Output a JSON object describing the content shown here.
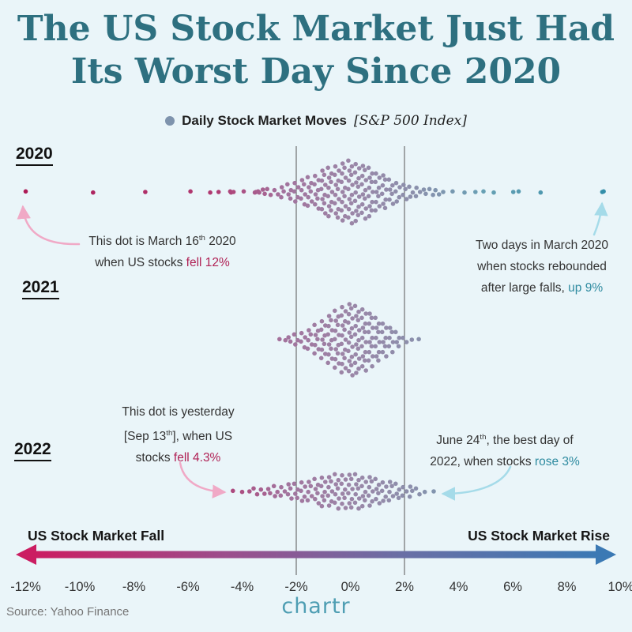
{
  "title": {
    "line1": "The US Stock Market Just Had",
    "line2": "Its Worst Day Since 2020"
  },
  "legend": {
    "label": "Daily Stock Market Moves",
    "bracket": "[S&P 500 Index]"
  },
  "colors": {
    "background": "#eaf5f9",
    "title": "#2e7080",
    "fall": "#b02155",
    "rise": "#2e8ba0",
    "dot_center": "#9b86a7",
    "legend_dot": "#7e93ad",
    "arrow_pink": "#f0a9c6",
    "arrow_blue": "#a5dbe9",
    "gradient_left": "#cb1d62",
    "gradient_right": "#3b79b4"
  },
  "axis": {
    "min": -12,
    "max": 10,
    "ticks": [
      "-12%",
      "-10%",
      "-8%",
      "-6%",
      "-4%",
      "-2%",
      "0%",
      "2%",
      "4%",
      "6%",
      "8%",
      "10%"
    ],
    "gridlines": [
      -2,
      2
    ]
  },
  "annotations": {
    "fall2020": {
      "line1_a": "This dot is March 16",
      "line1_sup": "th",
      "line1_b": " 2020",
      "line2_a": "when US stocks ",
      "line2_hl": "fell 12%"
    },
    "rise2020": {
      "line1": "Two days in March 2020",
      "line2": "when stocks rebounded",
      "line3_a": "after large falls, ",
      "line3_hl": "up 9%"
    },
    "fall2022": {
      "line1": "This dot is yesterday",
      "line2_a": "[Sep 13",
      "line2_sup": "th",
      "line2_b": "], when US",
      "line3_a": "stocks ",
      "line3_hl": "fell 4.3%"
    },
    "rise2022": {
      "line1_a": "June 24",
      "line1_sup": "th",
      "line1_b": ", the best day of",
      "line2_a": "2022, when stocks ",
      "line2_hl": "rose 3%"
    }
  },
  "direction": {
    "fall": "US Stock Market Fall",
    "rise": "US Stock Market Rise"
  },
  "footer": {
    "source": "Source: Yahoo Finance",
    "logo": "chartr"
  },
  "chart_data": {
    "type": "beeswarm_histogram",
    "title": "Daily Stock Market Moves [S&P 500 Index]",
    "unit": "% daily change",
    "x_domain": [
      -12,
      10
    ],
    "gridlines_pct": [
      -2,
      2
    ],
    "years": [
      {
        "label": "2020",
        "bins": [
          [
            -11.98,
            1
          ],
          [
            -9.51,
            1
          ],
          [
            -7.6,
            1
          ],
          [
            -5.89,
            1
          ],
          [
            -5.18,
            1
          ],
          [
            -4.89,
            1
          ],
          [
            -4.42,
            1
          ],
          [
            -4.41,
            1
          ],
          [
            -4.34,
            1
          ],
          [
            -3.92,
            1
          ],
          [
            -3.53,
            1
          ],
          [
            -3.51,
            1
          ],
          [
            -3.39,
            1
          ],
          [
            -3.37,
            1
          ],
          [
            -3.2,
            2
          ],
          [
            -3.0,
            2
          ],
          [
            -2.75,
            2
          ],
          [
            -2.5,
            3
          ],
          [
            -2.25,
            4
          ],
          [
            -2.0,
            5
          ],
          [
            -1.75,
            6
          ],
          [
            -1.5,
            7
          ],
          [
            -1.25,
            8
          ],
          [
            -1.0,
            10
          ],
          [
            -0.75,
            11
          ],
          [
            -0.5,
            12
          ],
          [
            -0.25,
            13
          ],
          [
            0,
            14
          ],
          [
            0.25,
            13
          ],
          [
            0.5,
            12
          ],
          [
            0.75,
            11
          ],
          [
            1.0,
            9
          ],
          [
            1.25,
            8
          ],
          [
            1.5,
            6
          ],
          [
            1.75,
            5
          ],
          [
            2.0,
            4
          ],
          [
            2.25,
            3
          ],
          [
            2.5,
            3
          ],
          [
            2.75,
            2
          ],
          [
            3.0,
            2
          ],
          [
            3.2,
            2
          ],
          [
            3.41,
            1
          ],
          [
            3.8,
            1
          ],
          [
            4.22,
            1
          ],
          [
            4.6,
            1
          ],
          [
            4.94,
            1
          ],
          [
            5.3,
            1
          ],
          [
            6.0,
            1
          ],
          [
            6.24,
            1
          ],
          [
            7.03,
            1
          ],
          [
            9.29,
            1
          ],
          [
            9.38,
            1
          ]
        ]
      },
      {
        "label": "2021",
        "bins": [
          [
            -2.6,
            1
          ],
          [
            -2.4,
            1
          ],
          [
            -2.25,
            2
          ],
          [
            -2.0,
            3
          ],
          [
            -1.75,
            4
          ],
          [
            -1.5,
            5
          ],
          [
            -1.25,
            7
          ],
          [
            -1.0,
            9
          ],
          [
            -0.75,
            11
          ],
          [
            -0.5,
            13
          ],
          [
            -0.25,
            15
          ],
          [
            0,
            16
          ],
          [
            0.25,
            15
          ],
          [
            0.5,
            14
          ],
          [
            0.75,
            12
          ],
          [
            1.0,
            10
          ],
          [
            1.25,
            8
          ],
          [
            1.5,
            6
          ],
          [
            1.75,
            4
          ],
          [
            2.0,
            2
          ],
          [
            2.25,
            1
          ],
          [
            2.55,
            1
          ]
        ]
      },
      {
        "label": "2022",
        "bins": [
          [
            -4.32,
            1
          ],
          [
            -4.0,
            1
          ],
          [
            -3.75,
            1
          ],
          [
            -3.5,
            2
          ],
          [
            -3.25,
            2
          ],
          [
            -3.0,
            2
          ],
          [
            -2.75,
            3
          ],
          [
            -2.5,
            3
          ],
          [
            -2.25,
            4
          ],
          [
            -2.0,
            4
          ],
          [
            -1.75,
            5
          ],
          [
            -1.5,
            5
          ],
          [
            -1.25,
            6
          ],
          [
            -1.0,
            7
          ],
          [
            -0.75,
            7
          ],
          [
            -0.5,
            8
          ],
          [
            -0.25,
            8
          ],
          [
            0,
            8
          ],
          [
            0.25,
            8
          ],
          [
            0.5,
            7
          ],
          [
            0.75,
            7
          ],
          [
            1.0,
            6
          ],
          [
            1.25,
            5
          ],
          [
            1.5,
            5
          ],
          [
            1.75,
            4
          ],
          [
            2.0,
            3
          ],
          [
            2.25,
            3
          ],
          [
            2.5,
            2
          ],
          [
            2.75,
            1
          ],
          [
            3.06,
            1
          ]
        ]
      }
    ],
    "notable_points": [
      {
        "year": "2020",
        "value": -11.98,
        "note": "March 16th 2020, US stocks fell 12%"
      },
      {
        "year": "2020",
        "value": 9.3,
        "note": "Two days in March 2020 rebounded up 9%"
      },
      {
        "year": "2022",
        "value": -4.3,
        "note": "Yesterday Sep 13th, stocks fell 4.3%"
      },
      {
        "year": "2022",
        "value": 3.06,
        "note": "June 24th best day of 2022, rose 3%"
      }
    ]
  }
}
